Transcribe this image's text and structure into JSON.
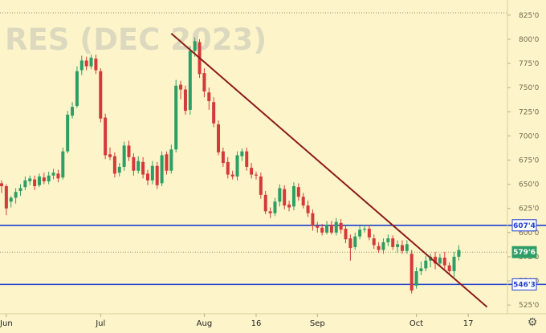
{
  "chart_data": {
    "type": "candlestick",
    "watermark": "RES (DEC 2023)",
    "y_ticks": [
      "825'0",
      "800'0",
      "775'0",
      "750'0",
      "725'0",
      "700'0",
      "675'0",
      "650'0",
      "625'0",
      "600'0",
      "575'0",
      "550'0",
      "525'0"
    ],
    "y_tick_values": [
      825,
      800,
      775,
      750,
      725,
      700,
      675,
      650,
      625,
      600,
      575,
      550,
      525
    ],
    "ylim": [
      516,
      834
    ],
    "x_ticks": [
      {
        "label": "Jun",
        "index": 1
      },
      {
        "label": "Jul",
        "index": 21
      },
      {
        "label": "Aug",
        "index": 43
      },
      {
        "label": "16",
        "index": 54
      },
      {
        "label": "Sep",
        "index": 67
      },
      {
        "label": "Oct",
        "index": 88
      },
      {
        "label": "17",
        "index": 99
      }
    ],
    "n_slots": 106,
    "levels": [
      {
        "label": "607'4",
        "value": 607.5,
        "color": "#1f3fd0",
        "bg": "#ffffff",
        "fg": "#1f3fd0",
        "kind": "line"
      },
      {
        "label": "546'3",
        "value": 546.4,
        "color": "#1f3fd0",
        "bg": "#ffffff",
        "fg": "#1f3fd0",
        "kind": "line"
      },
      {
        "label": "579'6",
        "value": 579.75,
        "color": "#2e9e66",
        "bg": "#2e9e66",
        "fg": "#ffffff",
        "kind": "dotted"
      }
    ],
    "trendline": {
      "start": [
        36,
        806
      ],
      "end": [
        103,
        523
      ],
      "color": "#8b1a1a"
    },
    "candles": [
      [
        651,
        648,
        654,
        641
      ],
      [
        648,
        625,
        650,
        618
      ],
      [
        632,
        636,
        638,
        626
      ],
      [
        636,
        642,
        646,
        630
      ],
      [
        643,
        646,
        650,
        638
      ],
      [
        647,
        654,
        658,
        644
      ],
      [
        653,
        656,
        659,
        649
      ],
      [
        655,
        648,
        659,
        644
      ],
      [
        649,
        658,
        661,
        647
      ],
      [
        657,
        653,
        662,
        650
      ],
      [
        653,
        659,
        663,
        650
      ],
      [
        659,
        662,
        666,
        655
      ],
      [
        661,
        656,
        665,
        652
      ],
      [
        657,
        684,
        688,
        655
      ],
      [
        684,
        722,
        726,
        682
      ],
      [
        721,
        730,
        735,
        718
      ],
      [
        731,
        767,
        772,
        729
      ],
      [
        768,
        778,
        783,
        763
      ],
      [
        778,
        772,
        782,
        768
      ],
      [
        772,
        781,
        784,
        769
      ],
      [
        780,
        768,
        784,
        764
      ],
      [
        767,
        718,
        770,
        714
      ],
      [
        719,
        680,
        723,
        676
      ],
      [
        681,
        678,
        688,
        675
      ],
      [
        679,
        661,
        683,
        657
      ],
      [
        662,
        668,
        672,
        658
      ],
      [
        668,
        690,
        694,
        664
      ],
      [
        690,
        678,
        695,
        674
      ],
      [
        678,
        664,
        682,
        659
      ],
      [
        664,
        674,
        679,
        661
      ],
      [
        673,
        660,
        678,
        656
      ],
      [
        661,
        654,
        665,
        649
      ],
      [
        654,
        669,
        674,
        650
      ],
      [
        669,
        649,
        673,
        645
      ],
      [
        651,
        680,
        684,
        648
      ],
      [
        681,
        664,
        684,
        660
      ],
      [
        664,
        686,
        691,
        661
      ],
      [
        686,
        752,
        758,
        683
      ],
      [
        753,
        748,
        757,
        738
      ],
      [
        748,
        726,
        752,
        722
      ],
      [
        727,
        788,
        793,
        722
      ],
      [
        788,
        798,
        802,
        782
      ],
      [
        797,
        764,
        800,
        760
      ],
      [
        765,
        746,
        770,
        740
      ],
      [
        745,
        736,
        750,
        727
      ],
      [
        735,
        713,
        740,
        709
      ],
      [
        712,
        683,
        716,
        680
      ],
      [
        684,
        672,
        688,
        668
      ],
      [
        673,
        660,
        678,
        656
      ],
      [
        660,
        658,
        664,
        655
      ],
      [
        658,
        680,
        684,
        654
      ],
      [
        679,
        684,
        687,
        674
      ],
      [
        684,
        668,
        688,
        664
      ],
      [
        667,
        660,
        672,
        656
      ],
      [
        660,
        659,
        663,
        655
      ],
      [
        658,
        639,
        662,
        635
      ],
      [
        639,
        622,
        643,
        619
      ],
      [
        622,
        620,
        626,
        615
      ],
      [
        620,
        632,
        636,
        617
      ],
      [
        632,
        646,
        650,
        627
      ],
      [
        645,
        628,
        649,
        624
      ],
      [
        629,
        626,
        633,
        622
      ],
      [
        627,
        648,
        652,
        623
      ],
      [
        647,
        637,
        651,
        633
      ],
      [
        637,
        628,
        641,
        625
      ],
      [
        628,
        620,
        633,
        616
      ],
      [
        620,
        607,
        624,
        602
      ],
      [
        607,
        605,
        611,
        600
      ],
      [
        605,
        600,
        609,
        597
      ],
      [
        600,
        608,
        612,
        598
      ],
      [
        608,
        600,
        612,
        598
      ],
      [
        600,
        611,
        615,
        597
      ],
      [
        610,
        603,
        614,
        599
      ],
      [
        604,
        593,
        608,
        589
      ],
      [
        594,
        584,
        598,
        571
      ],
      [
        585,
        596,
        600,
        582
      ],
      [
        596,
        603,
        607,
        593
      ],
      [
        603,
        604,
        608,
        600
      ],
      [
        604,
        595,
        608,
        592
      ],
      [
        594,
        587,
        598,
        583
      ],
      [
        586,
        582,
        590,
        579
      ],
      [
        582,
        590,
        594,
        578
      ],
      [
        590,
        594,
        598,
        586
      ],
      [
        594,
        585,
        597,
        582
      ],
      [
        585,
        588,
        592,
        579
      ],
      [
        587,
        581,
        592,
        578
      ],
      [
        581,
        588,
        592,
        578
      ],
      [
        578,
        540,
        582,
        537
      ],
      [
        545,
        560,
        564,
        542
      ],
      [
        560,
        563,
        570,
        556
      ],
      [
        563,
        571,
        576,
        560
      ],
      [
        571,
        575,
        578,
        564
      ],
      [
        575,
        568,
        580,
        562
      ],
      [
        568,
        574,
        578,
        565
      ],
      [
        574,
        566,
        580,
        562
      ],
      [
        566,
        560,
        569,
        556
      ],
      [
        560,
        575,
        580,
        554
      ],
      [
        575,
        582,
        587,
        571
      ]
    ]
  }
}
